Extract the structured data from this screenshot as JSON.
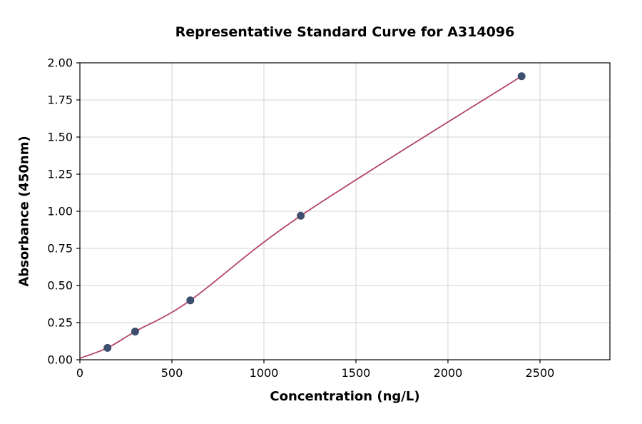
{
  "chart": {
    "title": "Representative Standard Curve for A314096",
    "xlabel": "Concentration (ng/L)",
    "ylabel": "Absorbance (450nm)"
  },
  "chart_data": {
    "type": "scatter",
    "title": "Representative Standard Curve for A314096",
    "xlabel": "Concentration (ng/L)",
    "ylabel": "Absorbance (450nm)",
    "points": {
      "x": [
        150,
        300,
        600,
        1200,
        2400
      ],
      "y": [
        0.08,
        0.19,
        0.4,
        0.97,
        1.91
      ]
    },
    "fit_curve": {
      "x": [
        0,
        150,
        300,
        600,
        1200,
        2400
      ],
      "y": [
        0.01,
        0.08,
        0.19,
        0.4,
        0.97,
        1.91
      ]
    },
    "xlim": [
      0,
      2880
    ],
    "ylim": [
      0,
      2.0
    ],
    "xticks": [
      0,
      500,
      1000,
      1500,
      2000,
      2500
    ],
    "yticks": [
      0.0,
      0.25,
      0.5,
      0.75,
      1.0,
      1.25,
      1.5,
      1.75,
      2.0
    ],
    "grid": true,
    "legend": "none",
    "colors": {
      "curve": "#b3446c",
      "point": "#3d4f6d",
      "grid": "#d3d3d3",
      "axis": "#000000",
      "background": "#ffffff"
    }
  }
}
